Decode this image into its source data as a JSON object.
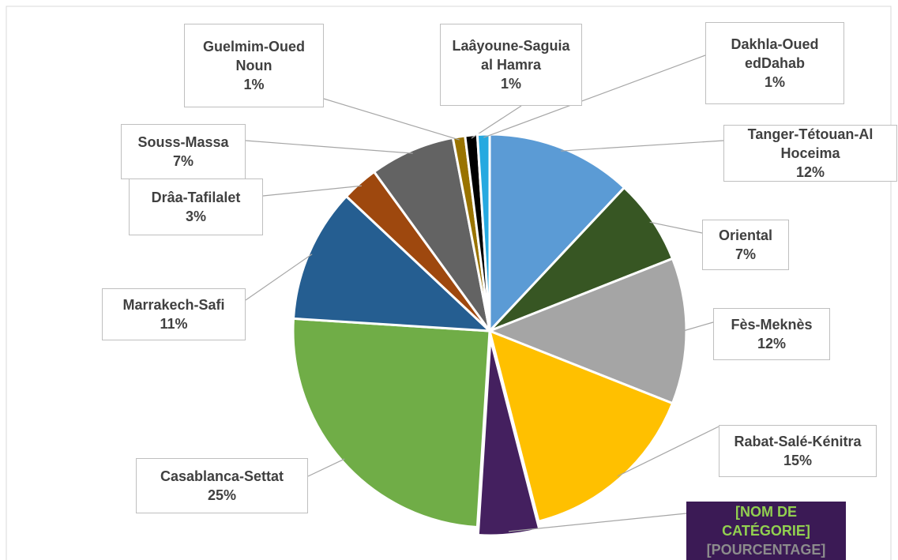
{
  "chart_data": {
    "type": "pie",
    "categories": [
      "Tanger-Tétouan-Al Hoceima",
      "Oriental",
      "Fès-Meknès",
      "Rabat-Salé-Kénitra",
      "[NOM DE CATÉGORIE]",
      "Casablanca-Settat",
      "Marrakech-Safi",
      "Drâa-Tafilalet",
      "Souss-Massa",
      "Guelmim-Oued Noun",
      "Laâyoune-Saguia al Hamra",
      "Dakhla-Oued edDahab"
    ],
    "values": [
      12,
      7,
      12,
      15,
      5,
      25,
      11,
      3,
      7,
      1,
      1,
      1
    ],
    "value_labels": [
      "12%",
      "7%",
      "12%",
      "15%",
      "[POURCENTAGE]",
      "25%",
      "11%",
      "3%",
      "7%",
      "1%",
      "1%",
      "1%"
    ],
    "colors": [
      "#5b9bd5",
      "#375623",
      "#a5a5a5",
      "#ffc000",
      "#44205f",
      "#70ad47",
      "#255e91",
      "#9e480e",
      "#636363",
      "#997300",
      "#000000",
      "#26a9e0"
    ]
  }
}
